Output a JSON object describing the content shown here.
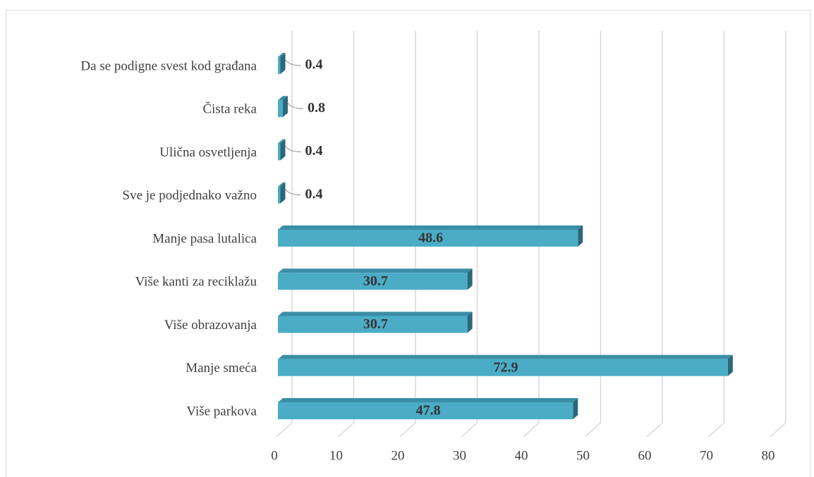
{
  "chart_data": {
    "type": "bar3d_horizontal",
    "categories": [
      "Da se podigne svest kod građana",
      "Čista reka",
      "Ulična osvetljenja",
      "Sve je podjednako važno",
      "Manje pasa lutalica",
      "Više kanti za reciklažu",
      "Više obrazovanja",
      "Manje smeća",
      "Više parkova"
    ],
    "values": [
      0.4,
      0.8,
      0.4,
      0.4,
      48.6,
      30.7,
      30.7,
      72.9,
      47.8
    ],
    "color": "#4bacc6",
    "xlim": [
      0,
      80
    ],
    "xticks": [
      0,
      10,
      20,
      30,
      40,
      50,
      60,
      70,
      80
    ],
    "grid": true
  }
}
